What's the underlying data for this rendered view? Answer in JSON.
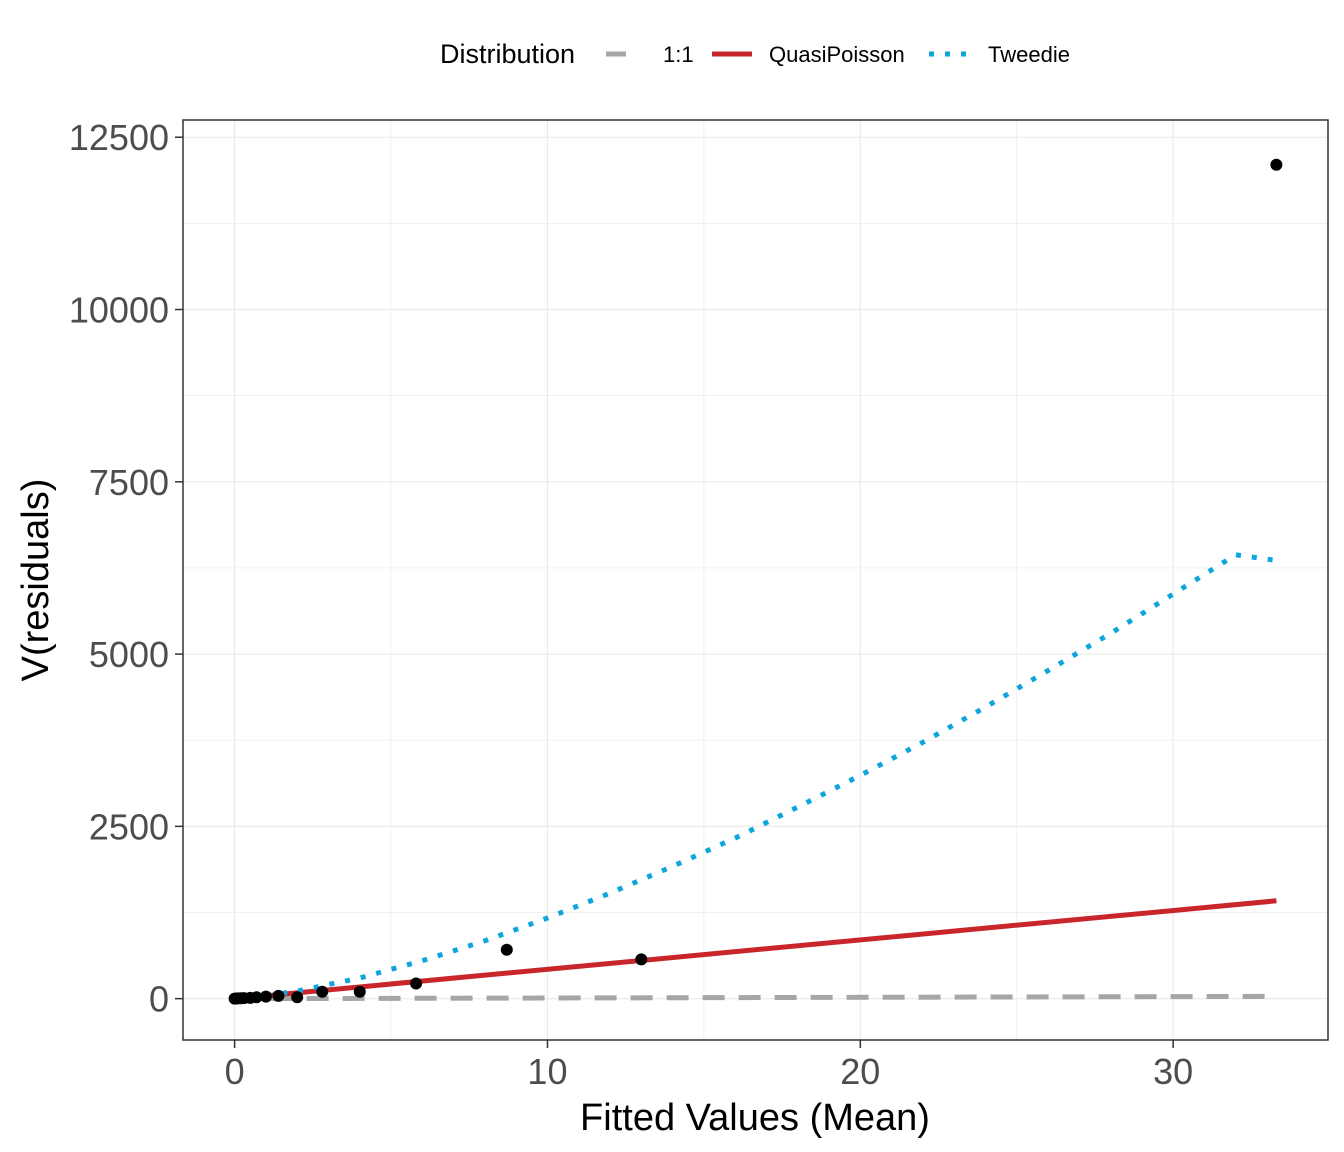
{
  "chart_data": {
    "type": "scatter",
    "xlabel": "Fitted Values (Mean)",
    "ylabel": "V(residuals)",
    "xlim": [
      -1.65,
      34.95
    ],
    "ylim": [
      -600,
      12750
    ],
    "x_ticks": [
      0,
      10,
      20,
      30
    ],
    "y_ticks": [
      0,
      2500,
      5000,
      7500,
      10000,
      12500
    ],
    "grid": true,
    "legend": {
      "title": "Distribution",
      "position": "top",
      "entries": [
        {
          "label": "1:1",
          "color": "#a6a6a6",
          "style": "dashed"
        },
        {
          "label": "QuasiPoisson",
          "color": "#c8262b",
          "style": "solid"
        },
        {
          "label": "Tweedie",
          "color": "#0ea5dd",
          "style": "dotted"
        }
      ]
    },
    "points": [
      {
        "x": 0.0,
        "y": 0
      },
      {
        "x": 0.05,
        "y": 2
      },
      {
        "x": 0.1,
        "y": 4
      },
      {
        "x": 0.2,
        "y": 6
      },
      {
        "x": 0.3,
        "y": 8
      },
      {
        "x": 0.5,
        "y": 12
      },
      {
        "x": 0.7,
        "y": 20
      },
      {
        "x": 1.0,
        "y": 30
      },
      {
        "x": 1.4,
        "y": 40
      },
      {
        "x": 2.0,
        "y": 20
      },
      {
        "x": 2.8,
        "y": 100
      },
      {
        "x": 4.0,
        "y": 100
      },
      {
        "x": 5.8,
        "y": 220
      },
      {
        "x": 8.7,
        "y": 710
      },
      {
        "x": 13.0,
        "y": 570
      },
      {
        "x": 33.3,
        "y": 12100
      }
    ],
    "series": [
      {
        "name": "1:1",
        "x": [
          0,
          33.3
        ],
        "y": [
          0,
          33.3
        ]
      },
      {
        "name": "QuasiPoisson",
        "x": [
          0,
          33.3
        ],
        "y": [
          0,
          1420
        ]
      },
      {
        "name": "Tweedie",
        "x": [
          0,
          1,
          2,
          4,
          6,
          8,
          10,
          12,
          14,
          16,
          18,
          20,
          22,
          24,
          26,
          28,
          30,
          32,
          33.3
        ],
        "y": [
          0,
          40,
          110,
          300,
          550,
          840,
          1170,
          1530,
          1920,
          2330,
          2780,
          3240,
          3720,
          4230,
          4760,
          5300,
          5870,
          6440,
          6360
        ]
      }
    ],
    "colors": {
      "points": "#000000",
      "grid": "#ebebeb",
      "panel_border": "#333333"
    }
  }
}
